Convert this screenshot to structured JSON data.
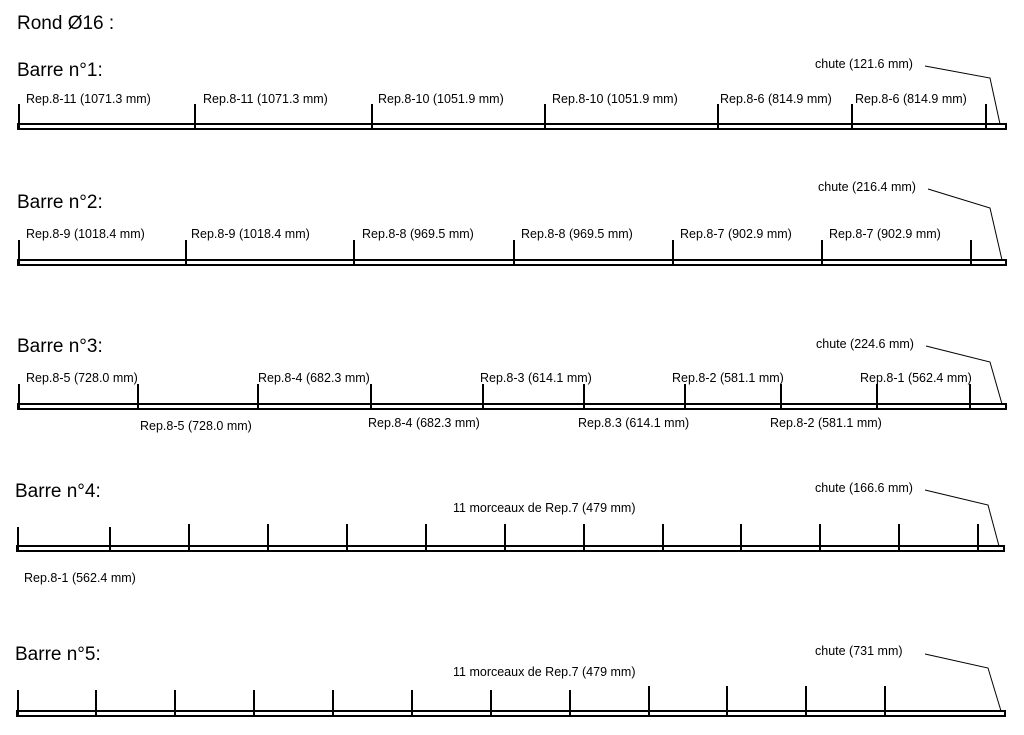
{
  "title": "Rond Ø16 :",
  "bars": [
    {
      "name": "Barre n°1:",
      "chute": "chute (121.6 mm)",
      "pieces_top": [
        "Rep.8-11 (1071.3 mm)",
        "Rep.8-11 (1071.3 mm)",
        "Rep.8-10 (1051.9 mm)",
        "Rep.8-10 (1051.9 mm)",
        "Rep.8-6 (814.9 mm)",
        "Rep.8-6 (814.9 mm)"
      ]
    },
    {
      "name": "Barre n°2:",
      "chute": "chute (216.4 mm)",
      "pieces_top": [
        "Rep.8-9 (1018.4 mm)",
        "Rep.8-9 (1018.4 mm)",
        "Rep.8-8 (969.5 mm)",
        "Rep.8-8 (969.5 mm)",
        "Rep.8-7 (902.9 mm)",
        "Rep.8-7 (902.9 mm)"
      ]
    },
    {
      "name": "Barre n°3:",
      "chute": "chute (224.6 mm)",
      "pieces_top": [
        "Rep.8-5 (728.0 mm)",
        "Rep.8-4 (682.3 mm)",
        "Rep.8-3 (614.1 mm)",
        "Rep.8-2 (581.1 mm)",
        "Rep.8-1 (562.4 mm)"
      ],
      "pieces_bottom": [
        "Rep.8-5 (728.0 mm)",
        "Rep.8-4 (682.3 mm)",
        "Rep.8.3 (614.1 mm)",
        "Rep.8-2 (581.1 mm)"
      ]
    },
    {
      "name": "Barre n°4:",
      "chute": "chute (166.6 mm)",
      "pieces_center": "11 morceaux de Rep.7 (479 mm)",
      "pieces_bottom": [
        "Rep.8-1 (562.4 mm)"
      ]
    },
    {
      "name": "Barre n°5:",
      "chute": "chute (731 mm)",
      "pieces_center": "11 morceaux de Rep.7 (479 mm)"
    }
  ]
}
